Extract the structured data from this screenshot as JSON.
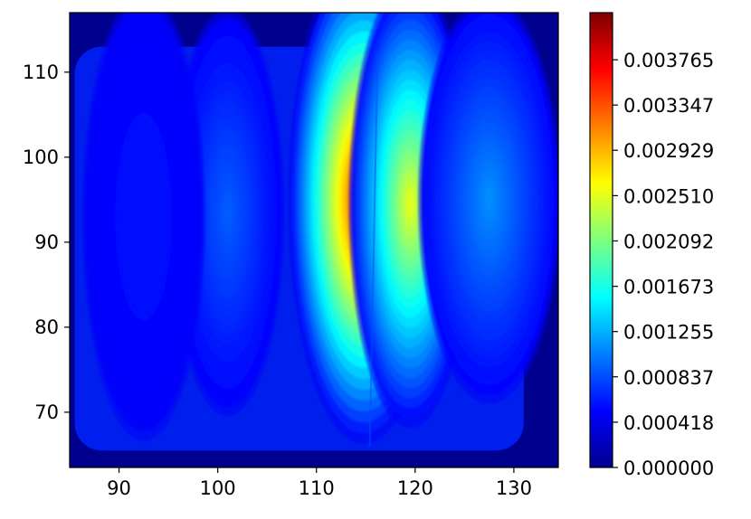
{
  "chart_data": {
    "type": "heatmap",
    "subtype": "filled-contour",
    "title": "",
    "xlabel": "",
    "ylabel": "",
    "xlim": [
      85,
      134.5
    ],
    "ylim": [
      63.5,
      117
    ],
    "x_ticks": [
      "90",
      "100",
      "110",
      "120",
      "130"
    ],
    "y_ticks": [
      "70",
      "80",
      "90",
      "100",
      "110"
    ],
    "colormap": "jet",
    "grid": false,
    "colorbar": {
      "min": 0.0,
      "max": 0.0042,
      "tick_labels": [
        "0.000000",
        "0.000418",
        "0.000837",
        "0.001255",
        "0.001673",
        "0.002092",
        "0.002510",
        "0.002929",
        "0.003347",
        "0.003765"
      ]
    },
    "density_peaks": [
      {
        "x": 114.8,
        "y": 95.0,
        "value": 0.0036
      },
      {
        "x": 119.5,
        "y": 94.5,
        "value": 0.0025
      },
      {
        "x": 127.5,
        "y": 95.0,
        "value": 0.0011
      },
      {
        "x": 101.0,
        "y": 93.5,
        "value": 0.0009
      },
      {
        "x": 92.5,
        "y": 93.0,
        "value": 0.0006
      }
    ],
    "support": {
      "x": [
        85.5,
        131
      ],
      "y": [
        65.5,
        113
      ]
    },
    "background_color": "#00008f"
  }
}
